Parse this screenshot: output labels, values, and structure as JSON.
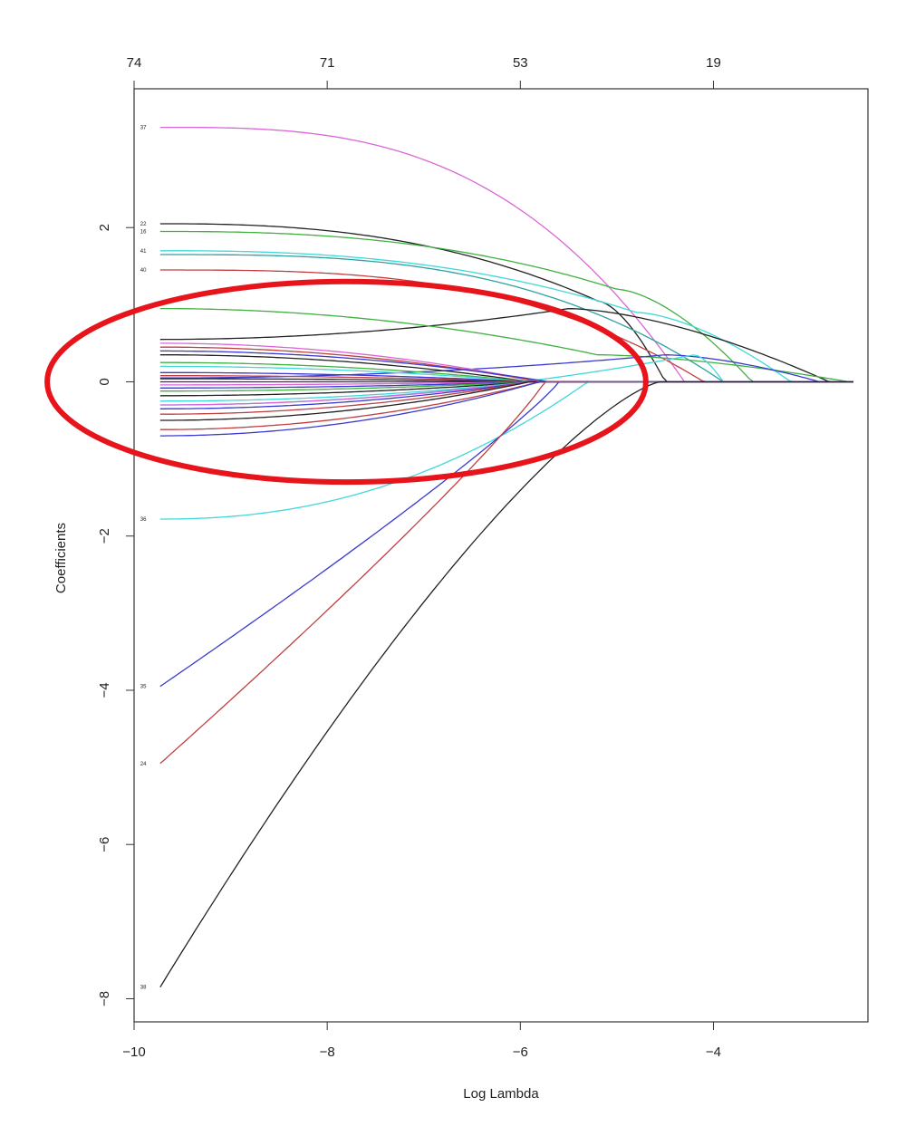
{
  "chart_data": {
    "type": "line",
    "xlabel": "Log Lambda",
    "ylabel": "Coefficients",
    "xlim": [
      -10,
      -2.4
    ],
    "ylim": [
      -8.3,
      3.8
    ],
    "x_ticks": [
      {
        "value": -10,
        "label": "−10"
      },
      {
        "value": -8,
        "label": "−8"
      },
      {
        "value": -6,
        "label": "−6"
      },
      {
        "value": -4,
        "label": "−4"
      }
    ],
    "y_ticks": [
      {
        "value": 2,
        "label": "2"
      },
      {
        "value": 0,
        "label": "0"
      },
      {
        "value": -2,
        "label": "−2"
      },
      {
        "value": -4,
        "label": "−4"
      },
      {
        "value": -6,
        "label": "−6"
      },
      {
        "value": -8,
        "label": "−8"
      }
    ],
    "top_ticks": [
      {
        "value": -10,
        "label": "74"
      },
      {
        "value": -8,
        "label": "71"
      },
      {
        "value": -6,
        "label": "53"
      },
      {
        "value": -4,
        "label": "19"
      }
    ],
    "grid": false,
    "x_start": -9.73,
    "highlight": {
      "shape": "ellipse",
      "color": "#e8141b",
      "center": [
        -7.8,
        0.0
      ],
      "radius": [
        3.1,
        1.3
      ]
    },
    "series": [
      {
        "label": "37",
        "color": "#d966d6",
        "start": 3.3,
        "zero": -4.3,
        "shape": "convex",
        "power": 3.0
      },
      {
        "label": "22",
        "color": "#222222",
        "start": 2.05,
        "zero": -4.5,
        "shape": "bump",
        "power": 2.5,
        "peakx": -5.2,
        "peak": 1.05
      },
      {
        "label": "16",
        "color": "#40b040",
        "start": 1.95,
        "zero": -3.6,
        "shape": "bump",
        "power": 2.5,
        "peakx": -5.0,
        "peak": 1.2
      },
      {
        "label": "41",
        "color": "#40d8d8",
        "start": 1.7,
        "zero": -3.2,
        "shape": "bump",
        "power": 2.5,
        "peakx": -4.8,
        "peak": 0.9
      },
      {
        "label": "",
        "color": "#30a0a0",
        "start": 1.65,
        "zero": -3.9,
        "shape": "convex",
        "power": 3.0
      },
      {
        "label": "40",
        "color": "#c04040",
        "start": 1.45,
        "zero": -4.1,
        "shape": "convex",
        "power": 3.0
      },
      {
        "label": "",
        "color": "#222222",
        "start": 0.55,
        "zero": -2.8,
        "shape": "bump",
        "power": 2.0,
        "peakx": -5.5,
        "peak": 0.95
      },
      {
        "label": "",
        "color": "#40b040",
        "start": 0.95,
        "zero": -2.6,
        "shape": "bump",
        "power": 2.0,
        "peakx": -5.2,
        "peak": 0.35
      },
      {
        "label": "",
        "color": "#3a3ad0",
        "start": 0.05,
        "zero": -2.9,
        "shape": "bump",
        "power": 2.0,
        "peakx": -4.5,
        "peak": 0.35
      },
      {
        "label": "",
        "color": "#40d8d8",
        "start": -0.3,
        "zero": -3.9,
        "shape": "bump",
        "power": 2.0,
        "peakx": -4.2,
        "peak": 0.35
      },
      {
        "label": "",
        "color": "#d966d6",
        "start": 0.5,
        "zero": -5.8,
        "shape": "convex",
        "power": 2.0
      },
      {
        "label": "",
        "color": "#c04040",
        "start": 0.45,
        "zero": -5.8,
        "shape": "convex",
        "power": 2.0
      },
      {
        "label": "",
        "color": "#3a3ad0",
        "start": 0.4,
        "zero": -5.7,
        "shape": "convex",
        "power": 2.0
      },
      {
        "label": "",
        "color": "#222222",
        "start": 0.35,
        "zero": -5.9,
        "shape": "convex",
        "power": 2.0
      },
      {
        "label": "",
        "color": "#40b040",
        "start": 0.25,
        "zero": -5.9,
        "shape": "convex",
        "power": 2.0
      },
      {
        "label": "",
        "color": "#40d8d8",
        "start": 0.2,
        "zero": -5.9,
        "shape": "convex",
        "power": 2.0
      },
      {
        "label": "",
        "color": "#3a3ad0",
        "start": 0.12,
        "zero": -5.9,
        "shape": "convex",
        "power": 2.0
      },
      {
        "label": "",
        "color": "#c04040",
        "start": 0.08,
        "zero": -5.9,
        "shape": "convex",
        "power": 2.0
      },
      {
        "label": "",
        "color": "#222222",
        "start": 0.04,
        "zero": -5.9,
        "shape": "convex",
        "power": 2.0
      },
      {
        "label": "",
        "color": "#6a0a9a",
        "start": 0.0,
        "zero": -5.9,
        "shape": "convex",
        "power": 2.0
      },
      {
        "label": "",
        "color": "#d966d6",
        "start": -0.04,
        "zero": -5.9,
        "shape": "convex",
        "power": 2.0
      },
      {
        "label": "",
        "color": "#3a3ad0",
        "start": -0.08,
        "zero": -5.9,
        "shape": "convex",
        "power": 2.0
      },
      {
        "label": "",
        "color": "#40b040",
        "start": -0.12,
        "zero": -5.9,
        "shape": "convex",
        "power": 2.0
      },
      {
        "label": "",
        "color": "#222222",
        "start": -0.18,
        "zero": -5.9,
        "shape": "convex",
        "power": 2.0
      },
      {
        "label": "",
        "color": "#40d8d8",
        "start": -0.25,
        "zero": -5.9,
        "shape": "convex",
        "power": 2.0
      },
      {
        "label": "",
        "color": "#d966d6",
        "start": -0.3,
        "zero": -5.9,
        "shape": "convex",
        "power": 2.0
      },
      {
        "label": "",
        "color": "#3a3ad0",
        "start": -0.35,
        "zero": -5.9,
        "shape": "convex",
        "power": 2.0
      },
      {
        "label": "",
        "color": "#c04040",
        "start": -0.42,
        "zero": -5.9,
        "shape": "convex",
        "power": 2.0
      },
      {
        "label": "",
        "color": "#222222",
        "start": -0.5,
        "zero": -5.9,
        "shape": "convex",
        "power": 2.0
      },
      {
        "label": "",
        "color": "#c04040",
        "start": -0.62,
        "zero": -5.8,
        "shape": "convex",
        "power": 2.0
      },
      {
        "label": "",
        "color": "#3a3ad0",
        "start": -0.7,
        "zero": -5.8,
        "shape": "convex",
        "power": 2.0
      },
      {
        "label": "36",
        "color": "#40d8d8",
        "start": -1.78,
        "zero": -5.3,
        "shape": "convex",
        "power": 2.2
      },
      {
        "label": "35",
        "color": "#3a3ad0",
        "start": -3.95,
        "zero": -5.6,
        "shape": "concave",
        "power": 0.9
      },
      {
        "label": "24",
        "color": "#c04040",
        "start": -4.95,
        "zero": -5.75,
        "shape": "concave",
        "power": 0.9
      },
      {
        "label": "38",
        "color": "#222222",
        "start": -7.85,
        "zero": -4.55,
        "shape": "concave",
        "power": 1.35
      }
    ]
  }
}
